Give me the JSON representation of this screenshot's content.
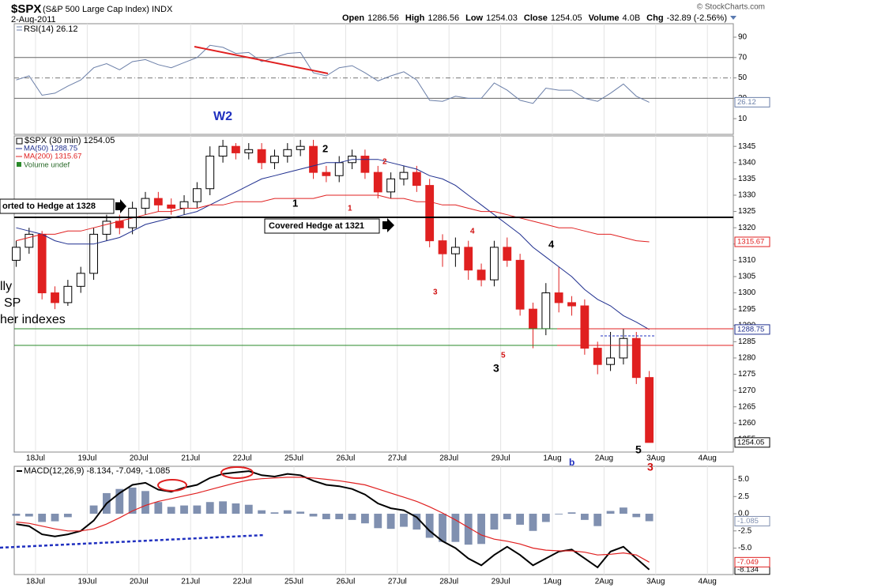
{
  "header": {
    "symbol": "$SPX",
    "name": "(S&P 500 Large Cap Index) INDX",
    "date": "2-Aug-2011",
    "credit": "© StockCharts.com",
    "quote": [
      {
        "label": "Open",
        "value": "1286.56"
      },
      {
        "label": "High",
        "value": "1286.56"
      },
      {
        "label": "Low",
        "value": "1254.03"
      },
      {
        "label": "Close",
        "value": "1254.05"
      },
      {
        "label": "Volume",
        "value": "4.0B"
      },
      {
        "label": "Chg",
        "value": "-32.89 (-2.56%)"
      }
    ]
  },
  "annotations": {
    "w2": "W2",
    "hedge_open": "orted to Hedge at 1328",
    "hedge_close": "Covered Hedge at 1321",
    "waves": [
      "1",
      "2",
      "1",
      "2",
      "3",
      "4",
      "5",
      "3",
      "4",
      "5",
      "3",
      "b"
    ],
    "side_text": [
      "lly",
      "SP",
      "her indexes"
    ]
  },
  "chart_data": [
    {
      "type": "line",
      "ylim": [
        -5.4,
        103.2
      ],
      "yticks": [
        10,
        30,
        50,
        70,
        90
      ],
      "reference_levels": [
        30,
        50,
        70
      ],
      "series": [
        {
          "name": "RSI(14) 26.12",
          "color": "#6b7fa8",
          "last_tag": true,
          "values": [
            48,
            52,
            33,
            35,
            42,
            48,
            60,
            64,
            58,
            66,
            68,
            63,
            60,
            65,
            70,
            82,
            80,
            74,
            75,
            66,
            70,
            74,
            75,
            55,
            52,
            60,
            62,
            55,
            47,
            52,
            56,
            48,
            28,
            27,
            32,
            30,
            30,
            45,
            38,
            28,
            25,
            40,
            38,
            38,
            30,
            27,
            35,
            44,
            32,
            26.12,
            null,
            null,
            null,
            null,
            null,
            null
          ]
        }
      ]
    },
    {
      "type": "candlestick",
      "name": "$SPX (30 min) 1254.05",
      "volume_legend": "Volume undef",
      "last_tag": true,
      "up_color": "#000000",
      "down_color": "#e02020",
      "ylim": [
        1251.1,
        1348.2
      ],
      "yticks": [
        1255,
        1260,
        1265,
        1270,
        1275,
        1280,
        1285,
        1290,
        1295,
        1300,
        1305,
        1310,
        1315,
        1320,
        1325,
        1330,
        1335,
        1340,
        1345
      ],
      "grid": false,
      "categories": [
        null,
        null,
        "18Jul",
        null,
        null,
        null,
        "19Jul",
        null,
        null,
        null,
        "20Jul",
        null,
        null,
        null,
        "21Jul",
        null,
        null,
        null,
        "22Jul",
        null,
        null,
        null,
        "25Jul",
        null,
        null,
        null,
        "26Jul",
        null,
        null,
        null,
        "27Jul",
        null,
        null,
        null,
        "28Jul",
        null,
        null,
        null,
        "29Jul",
        null,
        null,
        null,
        "1Aug",
        null,
        null,
        null,
        "2Aug",
        null,
        null,
        null,
        "3Aug",
        null,
        null,
        null,
        "4Aug",
        null
      ],
      "open": [
        1310,
        1314,
        1318,
        1300,
        1297,
        1302,
        1306,
        1318,
        1322,
        1320,
        1326,
        1329,
        1327,
        1326,
        1328,
        1332,
        1342,
        1345,
        1343,
        1344,
        1340,
        1342,
        1344,
        1345,
        1337,
        1336,
        1340,
        1342,
        1337,
        1331,
        1335,
        1337,
        1333,
        1316,
        1312,
        1314,
        1307,
        1304,
        1314,
        1310,
        1295,
        1289,
        1300,
        1297,
        1296,
        1283,
        1278,
        1280,
        1286,
        1274,
        null,
        null,
        null,
        null,
        null,
        null
      ],
      "high": [
        1316,
        1320,
        1319,
        1302,
        1304,
        1308,
        1320,
        1324,
        1324,
        1328,
        1331,
        1331,
        1329,
        1330,
        1334,
        1345,
        1347,
        1346,
        1346,
        1346,
        1344,
        1346,
        1347,
        1347,
        1339,
        1342,
        1344,
        1344,
        1339,
        1337,
        1339,
        1339,
        1335,
        1318,
        1317,
        1316,
        1309,
        1316,
        1317,
        1312,
        1297,
        1303,
        1308,
        1299,
        1298,
        1285,
        1288,
        1289,
        1288,
        1276,
        null,
        null,
        null,
        null,
        null,
        null
      ],
      "low": [
        1308,
        1312,
        1298,
        1295,
        1296,
        1300,
        1304,
        1316,
        1318,
        1318,
        1324,
        1325,
        1324,
        1324,
        1326,
        1330,
        1340,
        1341,
        1341,
        1338,
        1338,
        1340,
        1342,
        1335,
        1334,
        1334,
        1338,
        1335,
        1329,
        1329,
        1333,
        1331,
        1314,
        1308,
        1308,
        1304,
        1302,
        1302,
        1308,
        1293,
        1283,
        1287,
        1294,
        1293,
        1281,
        1275,
        1276,
        1278,
        1272,
        1254.03,
        null,
        null,
        null,
        null,
        null,
        null
      ],
      "close": [
        1314,
        1318,
        1300,
        1297,
        1302,
        1306,
        1318,
        1322,
        1320,
        1326,
        1329,
        1327,
        1326,
        1328,
        1332,
        1342,
        1345,
        1343,
        1344,
        1340,
        1342,
        1344,
        1345,
        1337,
        1336,
        1340,
        1342,
        1337,
        1331,
        1335,
        1337,
        1333,
        1316,
        1312,
        1314,
        1307,
        1304,
        1314,
        1310,
        1295,
        1289,
        1300,
        1297,
        1296,
        1283,
        1278,
        1280,
        1286,
        1274,
        1254.05,
        null,
        null,
        null,
        null,
        null,
        null
      ],
      "series": [
        {
          "name": "MA(50) 1288.75",
          "color": "#1f2f8f",
          "last_tag": true,
          "values": [
            1320,
            1319,
            1318,
            1316,
            1315,
            1315,
            1315,
            1316,
            1317,
            1319,
            1321,
            1322,
            1323,
            1324,
            1325,
            1327,
            1329,
            1331,
            1333,
            1335,
            1336,
            1337,
            1338,
            1339,
            1340,
            1340,
            1341,
            1341,
            1341,
            1340,
            1339,
            1338,
            1336,
            1335,
            1333,
            1330,
            1327,
            1324,
            1321,
            1318,
            1314,
            1311,
            1308,
            1305,
            1301,
            1298,
            1296,
            1293,
            1291,
            1288.75,
            null,
            null,
            null,
            null,
            null,
            null
          ]
        },
        {
          "name": "MA(200) 1315.67",
          "color": "#e02020",
          "last_tag": true,
          "values": [
            1316,
            1317,
            1318,
            1318,
            1319,
            1319,
            1320,
            1321,
            1322,
            1323,
            1324,
            1325,
            1325,
            1326,
            1326,
            1327,
            1327,
            1328,
            1328,
            1328,
            1329,
            1329,
            1329,
            1329,
            1330,
            1330,
            1330,
            1330,
            1330,
            1329,
            1329,
            1328,
            1328,
            1327,
            1327,
            1326,
            1325,
            1325,
            1324,
            1323,
            1322,
            1321,
            1320,
            1320,
            1319,
            1318,
            1318,
            1317,
            1316,
            1315.67,
            null,
            null,
            null,
            null,
            null,
            null
          ]
        }
      ]
    },
    {
      "type": "line",
      "legend": "MACD(12,26,9) -8.134, -7.049, -1.085",
      "ylim": [
        -8.85,
        6.9
      ],
      "yticks": [
        {
          "value": 5,
          "label": "5.0"
        },
        2.5,
        {
          "value": 0,
          "label": "0.0"
        },
        -2.5,
        {
          "value": -5,
          "label": "-5.0"
        }
      ],
      "series": [
        {
          "type": "bar",
          "color": "#8090b0",
          "last_tag": true,
          "values": [
            -0.3,
            -0.4,
            -1.2,
            -1.1,
            -0.5,
            0,
            1.2,
            3,
            3.6,
            3.8,
            3.3,
            1.7,
            1,
            1.2,
            1.2,
            1.7,
            1.8,
            1.5,
            1.3,
            0.5,
            0.2,
            0.5,
            0.3,
            -0.4,
            -0.8,
            -0.8,
            -0.9,
            -1.4,
            -2.1,
            -2.2,
            -1.9,
            -2.3,
            -3.5,
            -4.1,
            -4.1,
            -4.5,
            -4.4,
            -2.3,
            -0.8,
            -1.6,
            -2.5,
            -1.2,
            -0.1,
            0.2,
            -0.9,
            -1.8,
            0.4,
            0.9,
            -0.5,
            -1.085,
            null,
            null,
            null,
            null,
            null,
            null
          ]
        },
        {
          "color": "#000000",
          "width": 2,
          "last_tag": true,
          "values": [
            -1.5,
            -1.8,
            -3,
            -3.3,
            -3,
            -2.5,
            -1,
            1.5,
            3,
            4.2,
            4.5,
            3.5,
            3.2,
            3.8,
            4.2,
            5.2,
            5.8,
            6,
            6.2,
            5.6,
            5.4,
            5.8,
            5.6,
            4.8,
            4.2,
            4,
            3.6,
            2.8,
            1.5,
            0.8,
            0.5,
            -0.5,
            -2.5,
            -4,
            -5,
            -6.5,
            -7.5,
            -6,
            -4.8,
            -6,
            -7.5,
            -6.5,
            -5.5,
            -5.2,
            -6.5,
            -7.8,
            -5.5,
            -4.8,
            -6.5,
            -8.134,
            null,
            null,
            null,
            null,
            null,
            null
          ]
        },
        {
          "color": "#e02020",
          "width": 1.2,
          "last_tag": true,
          "values": [
            -1.2,
            -1.4,
            -1.8,
            -2.2,
            -2.5,
            -2.5,
            -2.2,
            -1.5,
            -0.6,
            0.4,
            1.2,
            1.8,
            2.2,
            2.6,
            3,
            3.5,
            4,
            4.5,
            4.9,
            5.1,
            5.2,
            5.3,
            5.3,
            5.2,
            5,
            4.8,
            4.5,
            4.2,
            3.6,
            3,
            2.4,
            1.8,
            1,
            0.1,
            -0.9,
            -2,
            -3.1,
            -3.7,
            -4,
            -4.4,
            -5,
            -5.3,
            -5.4,
            -5.4,
            -5.6,
            -6,
            -5.9,
            -5.7,
            -6,
            -7.049,
            null,
            null,
            null,
            null,
            null,
            null
          ]
        }
      ]
    }
  ]
}
